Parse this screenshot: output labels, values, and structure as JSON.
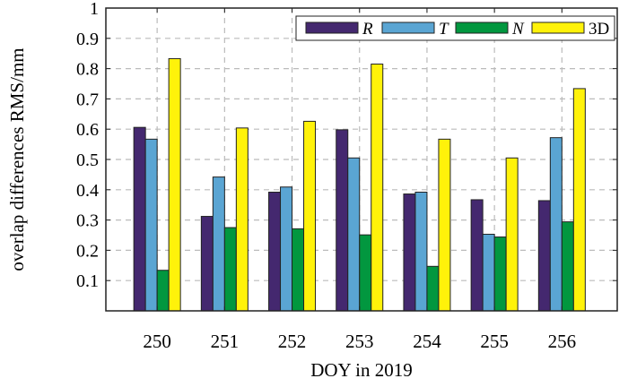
{
  "chart_data": {
    "type": "bar",
    "title": "",
    "xlabel": "DOY in 2019",
    "ylabel": "overlap differences RMS/mm",
    "categories": [
      "250",
      "251",
      "252",
      "253",
      "254",
      "255",
      "256"
    ],
    "series": [
      {
        "name": "R",
        "color": "#44286f",
        "values": [
          0.606,
          0.312,
          0.392,
          0.598,
          0.386,
          0.367,
          0.364
        ]
      },
      {
        "name": "T",
        "color": "#5aa5d3",
        "values": [
          0.567,
          0.442,
          0.409,
          0.505,
          0.392,
          0.253,
          0.572
        ]
      },
      {
        "name": "N",
        "color": "#02973f",
        "values": [
          0.134,
          0.275,
          0.271,
          0.251,
          0.147,
          0.244,
          0.294
        ]
      },
      {
        "name": "3D",
        "color": "#fff20a",
        "values": [
          0.833,
          0.604,
          0.626,
          0.815,
          0.567,
          0.505,
          0.734
        ]
      }
    ],
    "ylim": [
      0,
      1
    ],
    "yticks": [
      "0.1",
      "0.2",
      "0.3",
      "0.4",
      "0.5",
      "0.6",
      "0.7",
      "0.8",
      "0.9",
      "1"
    ],
    "grid": true,
    "legend": "top-right"
  }
}
